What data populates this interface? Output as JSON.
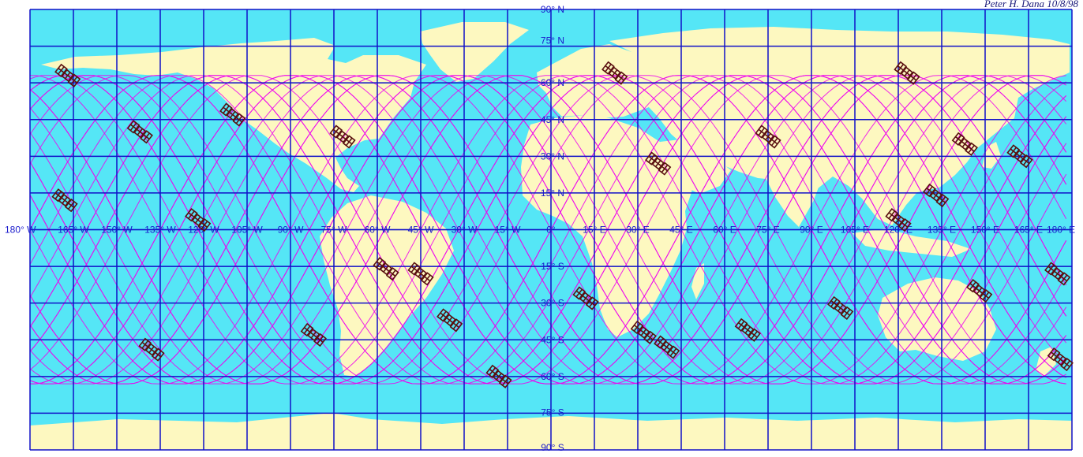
{
  "credit": "Peter H. Dana 10/8/98",
  "colors": {
    "ocean": "#55e6f6",
    "land": "#fdf8c0",
    "grid": "#1010c8",
    "track": "#ee00ee",
    "satellite": "#5a1010",
    "label": "#1a1acc"
  },
  "longitude_labels": [
    "180° W",
    "165° W",
    "150° W",
    "135° W",
    "120° W",
    "105° W",
    "90° W",
    "75° W",
    "60° W",
    "45° W",
    "30° W",
    "15° W",
    "0°",
    "15° E",
    "30° E",
    "45° E",
    "60° E",
    "75° E",
    "90° E",
    "105° E",
    "120° E",
    "135° E",
    "150° E",
    "165° E",
    "180° E"
  ],
  "latitude_labels": [
    "90° N",
    "75° N",
    "60° N",
    "45° N",
    "30° N",
    "15° N",
    "15° S",
    "30° S",
    "45° S",
    "60° S",
    "75° S",
    "90° S"
  ],
  "satellites": [
    {
      "lon": -167,
      "lat": 63
    },
    {
      "lon": -142,
      "lat": 40
    },
    {
      "lon": -110,
      "lat": 47
    },
    {
      "lon": -72,
      "lat": 38
    },
    {
      "lon": -168,
      "lat": 12
    },
    {
      "lon": -122,
      "lat": 4
    },
    {
      "lon": -57,
      "lat": -16
    },
    {
      "lon": -45,
      "lat": -18
    },
    {
      "lon": -35,
      "lat": -37
    },
    {
      "lon": -82,
      "lat": -43
    },
    {
      "lon": -138,
      "lat": -49
    },
    {
      "lon": -18,
      "lat": -60
    },
    {
      "lon": 22,
      "lat": 64
    },
    {
      "lon": 37,
      "lat": 27
    },
    {
      "lon": 12,
      "lat": -28
    },
    {
      "lon": 32,
      "lat": -42
    },
    {
      "lon": 40,
      "lat": -48
    },
    {
      "lon": 68,
      "lat": -41
    },
    {
      "lon": 75,
      "lat": 38
    },
    {
      "lon": 123,
      "lat": 64
    },
    {
      "lon": 120,
      "lat": 4
    },
    {
      "lon": 133,
      "lat": 14
    },
    {
      "lon": 143,
      "lat": 35
    },
    {
      "lon": 100,
      "lat": -32
    },
    {
      "lon": 148,
      "lat": -25
    },
    {
      "lon": 162,
      "lat": 30
    },
    {
      "lon": 175,
      "lat": -18
    },
    {
      "lon": 176,
      "lat": -53
    }
  ]
}
